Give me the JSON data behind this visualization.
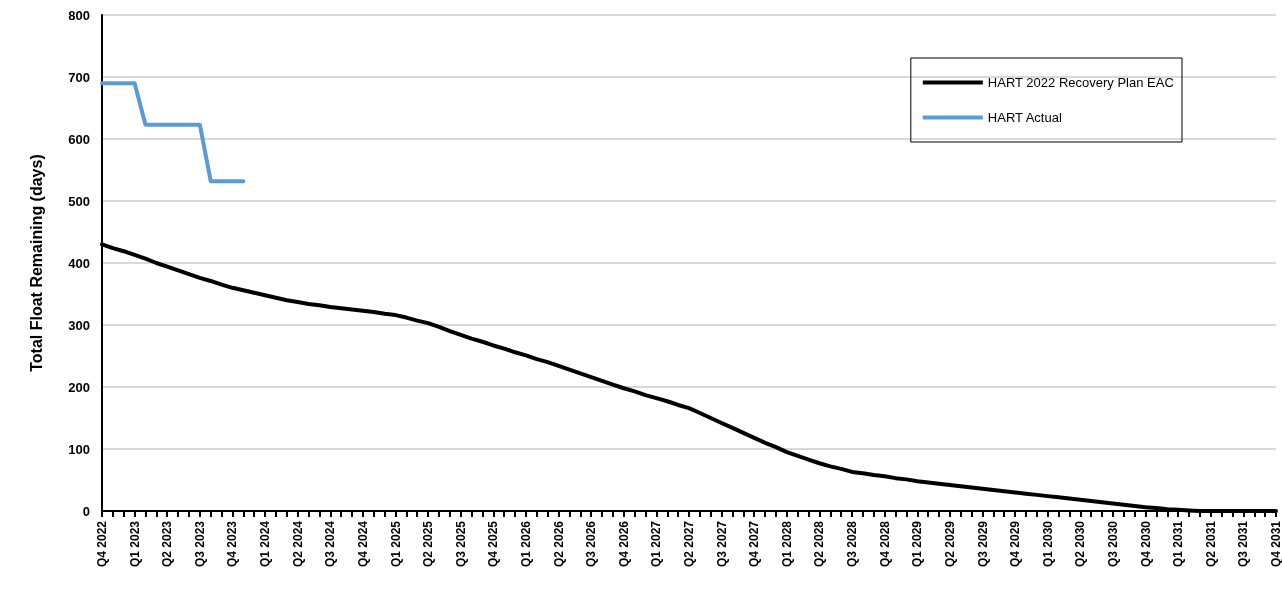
{
  "chart_data": {
    "type": "line",
    "ylabel": "Total Float Remaining (days)",
    "categories": [
      "Q4 2022",
      null,
      null,
      "Q1 2023",
      null,
      null,
      "Q2 2023",
      null,
      null,
      "Q3 2023",
      null,
      null,
      "Q4 2023",
      null,
      null,
      "Q1 2024",
      null,
      null,
      "Q2 2024",
      null,
      null,
      "Q3 2024",
      null,
      null,
      "Q4 2024",
      null,
      null,
      "Q1 2025",
      null,
      null,
      "Q2 2025",
      null,
      null,
      "Q3 2025",
      null,
      null,
      "Q4 2025",
      null,
      null,
      "Q1 2026",
      null,
      null,
      "Q2 2026",
      null,
      null,
      "Q3 2026",
      null,
      null,
      "Q4 2026",
      null,
      null,
      "Q1 2027",
      null,
      null,
      "Q2 2027",
      null,
      null,
      "Q3 2027",
      null,
      null,
      "Q4 2027",
      null,
      null,
      "Q1 2028",
      null,
      null,
      "Q2 2028",
      null,
      null,
      "Q3 2028",
      null,
      null,
      "Q4 2028",
      null,
      null,
      "Q1 2029",
      null,
      null,
      "Q2 2029",
      null,
      null,
      "Q3 2029",
      null,
      null,
      "Q4 2029",
      null,
      null,
      "Q1 2030",
      null,
      null,
      "Q2 2030",
      null,
      null,
      "Q3 2030",
      null,
      null,
      "Q4 2030",
      null,
      null,
      "Q1 2031",
      null,
      null,
      "Q2 2031",
      null,
      null,
      "Q3 2031",
      null,
      null,
      "Q4 2031"
    ],
    "series": [
      {
        "name": "HART 2022 Recovery Plan EAC",
        "color": "#000000",
        "values": [
          430,
          424,
          419,
          413,
          407,
          400,
          394,
          388,
          382,
          376,
          371,
          365,
          360,
          356,
          352,
          348,
          344,
          340,
          337,
          334,
          332,
          329,
          327,
          325,
          323,
          321,
          318,
          316,
          312,
          307,
          303,
          297,
          290,
          284,
          278,
          273,
          267,
          262,
          256,
          251,
          245,
          240,
          234,
          228,
          222,
          216,
          210,
          204,
          198,
          193,
          187,
          182,
          177,
          171,
          166,
          158,
          150,
          142,
          134,
          126,
          118,
          110,
          103,
          95,
          89,
          83,
          77,
          72,
          68,
          63,
          61,
          58,
          56,
          53,
          51,
          48,
          46,
          44,
          42,
          40,
          38,
          36,
          34,
          32,
          30,
          28,
          26,
          24,
          22,
          20,
          18,
          16,
          14,
          12,
          10,
          8,
          6,
          5,
          3,
          2,
          1,
          0,
          0,
          0,
          0,
          0,
          0,
          0,
          0
        ]
      },
      {
        "name": "HART Actual",
        "color": "#5b9bd5",
        "values": [
          690,
          690,
          690,
          690,
          623,
          623,
          623,
          623,
          623,
          623,
          532,
          532,
          532,
          532,
          null,
          null,
          null,
          null,
          null,
          null,
          null,
          null,
          null,
          null,
          null,
          null,
          null,
          null,
          null,
          null,
          null,
          null,
          null,
          null,
          null,
          null,
          null,
          null,
          null,
          null,
          null,
          null,
          null,
          null,
          null,
          null,
          null,
          null,
          null,
          null,
          null,
          null,
          null,
          null,
          null,
          null,
          null,
          null,
          null,
          null,
          null,
          null,
          null,
          null,
          null,
          null,
          null,
          null,
          null,
          null,
          null,
          null,
          null,
          null,
          null,
          null,
          null,
          null,
          null,
          null,
          null,
          null,
          null,
          null,
          null,
          null,
          null,
          null,
          null,
          null,
          null,
          null,
          null,
          null,
          null,
          null,
          null,
          null,
          null,
          null,
          null,
          null,
          null,
          null,
          null,
          null,
          null,
          null,
          null
        ]
      }
    ],
    "ylim": [
      0,
      800
    ],
    "yticks": [
      0,
      100,
      200,
      300,
      400,
      500,
      600,
      700,
      800
    ],
    "grid": "y",
    "legend": "top right",
    "marker": "none",
    "line_style": "solid"
  }
}
